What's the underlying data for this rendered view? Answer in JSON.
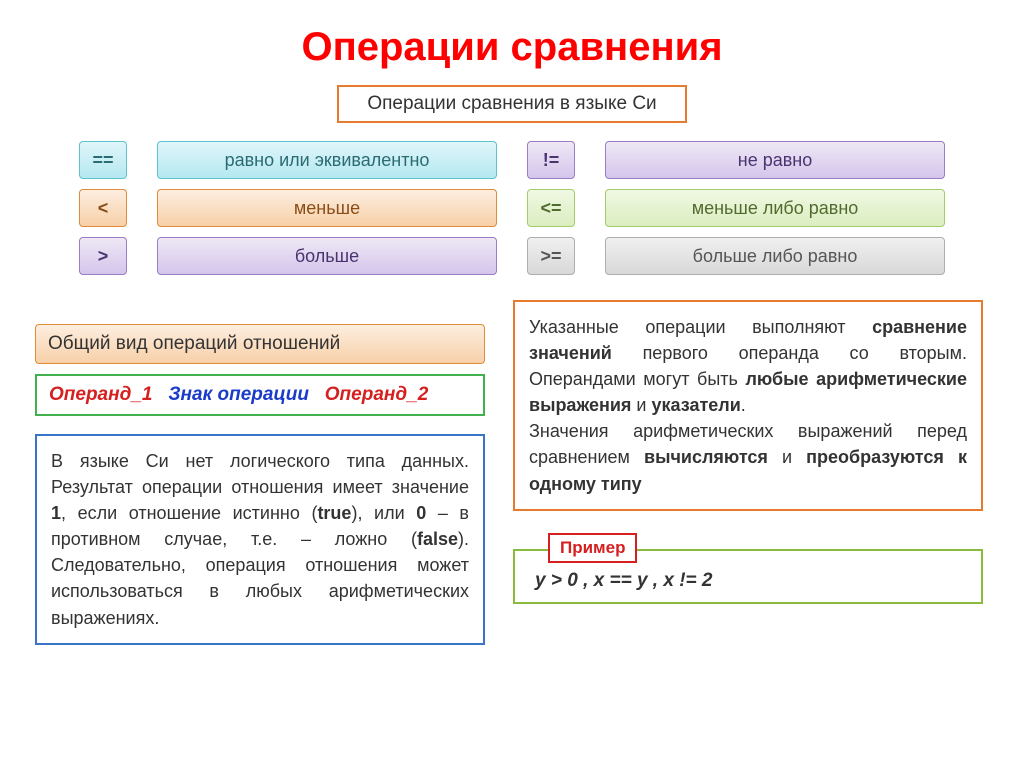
{
  "title": "Операции сравнения",
  "subtitle": "Операции сравнения в языке Си",
  "operators": {
    "eq_sym": "==",
    "eq_label": "равно или эквивалентно",
    "ne_sym": "!=",
    "ne_label": "не равно",
    "lt_sym": "<",
    "lt_label": "меньше",
    "le_sym": "<=",
    "le_label": "меньше либо равно",
    "gt_sym": ">",
    "gt_label": "больше",
    "ge_sym": ">=",
    "ge_label": "больше либо равно"
  },
  "general_view_label": "Общий вид операций отношений",
  "operand": {
    "op1": "Операнд_1",
    "sign": "Знак операции",
    "op2": "Операнд_2"
  },
  "desc_left_pre": "В языке Си нет логического типа данных. Результат операции отношения имеет значение ",
  "desc_left_1": "1",
  "desc_left_mid1": ", если отношение истинно (",
  "desc_left_true": "true",
  "desc_left_mid2": "), или ",
  "desc_left_0": "0",
  "desc_left_mid3": " – в противном случае, т.е. – ложно (",
  "desc_left_false": "false",
  "desc_left_end": "). Следовательно, операция отношения может использоваться в любых арифметических выражениях.",
  "desc_right_pre": "Указанные операции выполняют ",
  "desc_right_b1": "сравнение значений",
  "desc_right_mid1": " первого операнда со вторым. Операндами могут быть ",
  "desc_right_b2": "любые арифметические выражения",
  "desc_right_mid2": " и ",
  "desc_right_b3": "указатели",
  "desc_right_mid3": ".\nЗначения арифметических выражений перед сравнением ",
  "desc_right_b4": "вычисляются",
  "desc_right_mid4": " и ",
  "desc_right_b5": "преобразуются к одному типу",
  "example_label": "Пример",
  "example_code": "y > 0  ,   x == y  ,  x != 2",
  "colors": {
    "title": "#ff0000",
    "border_orange": "#e67a2e",
    "border_green": "#43b24e",
    "border_blue": "#3974c9",
    "border_red": "#d62020",
    "border_lightgreen": "#8bbb3e"
  }
}
